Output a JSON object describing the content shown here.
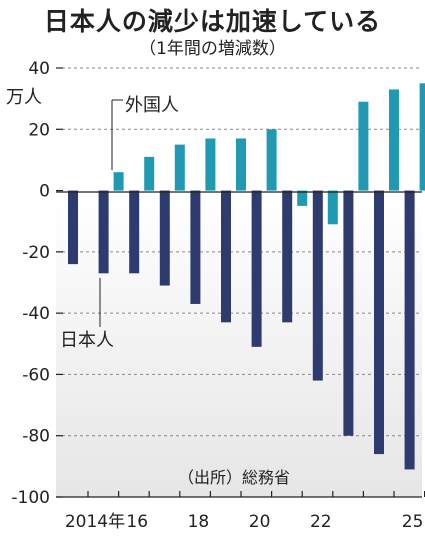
{
  "title": "日本人の減少は加速している",
  "subtitle": "（1年間の増減数）",
  "unit": "万人",
  "source": "（出所）総務省",
  "annotations": {
    "foreign": "外国人",
    "japanese": "日本人"
  },
  "colors": {
    "japanese": "#2e3b6e",
    "foreign": "#1f9ab2"
  },
  "chart_data": {
    "type": "bar",
    "title": "日本人の減少は加速している",
    "subtitle": "（1年間の増減数）",
    "ylabel": "万人",
    "ylim": [
      -100,
      40
    ],
    "yticks": [
      40,
      20,
      0,
      -20,
      -40,
      -60,
      -80,
      -100
    ],
    "x_tick_labels": [
      {
        "year": 2014,
        "label": "2014年"
      },
      {
        "year": 2016,
        "label": "16"
      },
      {
        "year": 2018,
        "label": "18"
      },
      {
        "year": 2020,
        "label": "20"
      },
      {
        "year": 2022,
        "label": "22"
      },
      {
        "year": 2025,
        "label": "25"
      }
    ],
    "categories": [
      2014,
      2015,
      2016,
      2017,
      2018,
      2019,
      2020,
      2021,
      2022,
      2023,
      2024,
      2025
    ],
    "series": [
      {
        "name": "日本人",
        "values": [
          -24,
          -27,
          -27,
          -31,
          -37,
          -43,
          -51,
          -43,
          -62,
          -80,
          -86,
          -91
        ]
      },
      {
        "name": "外国人",
        "values": [
          null,
          6,
          11,
          15,
          17,
          17,
          20,
          -5,
          -11,
          29,
          33,
          35
        ]
      }
    ],
    "grid": "dashed",
    "legend": "annotations"
  }
}
